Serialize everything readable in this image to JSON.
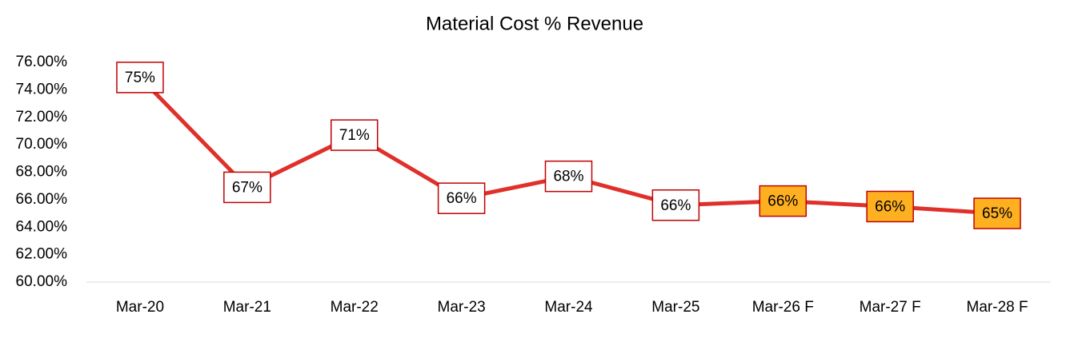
{
  "chart_data": {
    "type": "line",
    "title": "Material Cost % Revenue",
    "categories": [
      "Mar-20",
      "Mar-21",
      "Mar-22",
      "Mar-23",
      "Mar-24",
      "Mar-25",
      "Mar-26 F",
      "Mar-27 F",
      "Mar-28 F"
    ],
    "series": [
      {
        "name": "Material Cost % Revenue",
        "color": "#e0302a",
        "values": [
          74.9,
          66.9,
          70.7,
          66.1,
          67.7,
          65.6,
          65.9,
          65.5,
          65.0
        ],
        "value_labels": [
          "75%",
          "67%",
          "71%",
          "66%",
          "68%",
          "66%",
          "66%",
          "66%",
          "65%"
        ],
        "label_fill": [
          "#ffffff",
          "#ffffff",
          "#ffffff",
          "#ffffff",
          "#ffffff",
          "#ffffff",
          "#ffb020",
          "#ffb020",
          "#ffb020"
        ],
        "label_border": "#c00000"
      }
    ],
    "ylim": [
      60,
      76
    ],
    "yticks": [
      {
        "value": 60,
        "label": "60.00%"
      },
      {
        "value": 62,
        "label": "62.00%"
      },
      {
        "value": 64,
        "label": "64.00%"
      },
      {
        "value": 66,
        "label": "66.00%"
      },
      {
        "value": 68,
        "label": "68.00%"
      },
      {
        "value": 70,
        "label": "70.00%"
      },
      {
        "value": 72,
        "label": "72.00%"
      },
      {
        "value": 74,
        "label": "74.00%"
      },
      {
        "value": 76,
        "label": "76.00%"
      }
    ],
    "grid": false
  }
}
